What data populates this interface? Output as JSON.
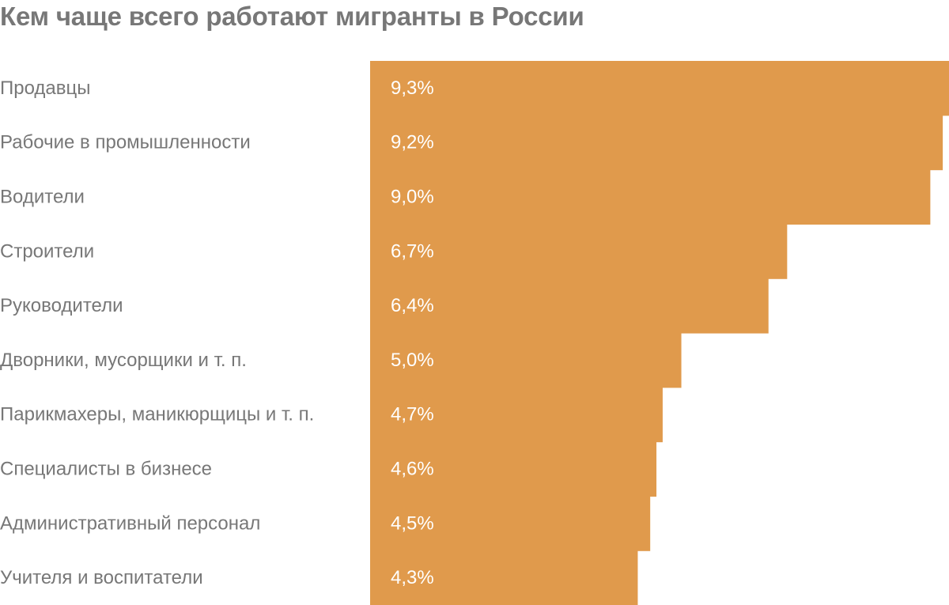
{
  "chart_data": {
    "type": "bar",
    "orientation": "horizontal",
    "title": "Кем чаще всего работают мигранты в России",
    "categories": [
      "Продавцы",
      "Рабочие в промышленности",
      "Водители",
      "Строители",
      "Руководители",
      "Дворники, мусорщики и т. п.",
      "Парикмахеры, маникюрщицы и т. п.",
      "Специалисты в бизнесе",
      "Административный персонал",
      "Учителя и воспитатели"
    ],
    "values": [
      9.3,
      9.2,
      9.0,
      6.7,
      6.4,
      5.0,
      4.7,
      4.6,
      4.5,
      4.3
    ],
    "value_labels": [
      "9,3%",
      "9,2%",
      "9,0%",
      "6,7%",
      "6,4%",
      "5,0%",
      "4,7%",
      "4,6%",
      "4,5%",
      "4,3%"
    ],
    "xlim": [
      0,
      9.3
    ],
    "grid": false,
    "bar_color": "#E09A4C"
  }
}
